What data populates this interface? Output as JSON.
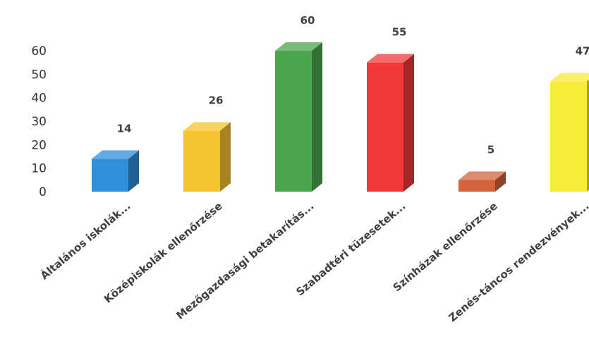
{
  "chart_data": {
    "type": "bar",
    "style": "3d-column",
    "categories": [
      "Általános iskolák...",
      "Középiskolák ellenőrzése",
      "Mezőgazdasági betakarítás...",
      "Szabadtéri tüzesetek...",
      "Színházak ellenőrzése",
      "Zenés-táncos rendezvények..."
    ],
    "values": [
      14,
      26,
      60,
      55,
      5,
      47
    ],
    "colors": [
      "#2f8fdc",
      "#f6c42c",
      "#4aa64a",
      "#f23838",
      "#d2643c",
      "#f7ec3a"
    ],
    "yticks": [
      0,
      10,
      20,
      30,
      40,
      50,
      60
    ],
    "ylim": [
      0,
      60
    ],
    "grid": false,
    "legend": "none"
  }
}
